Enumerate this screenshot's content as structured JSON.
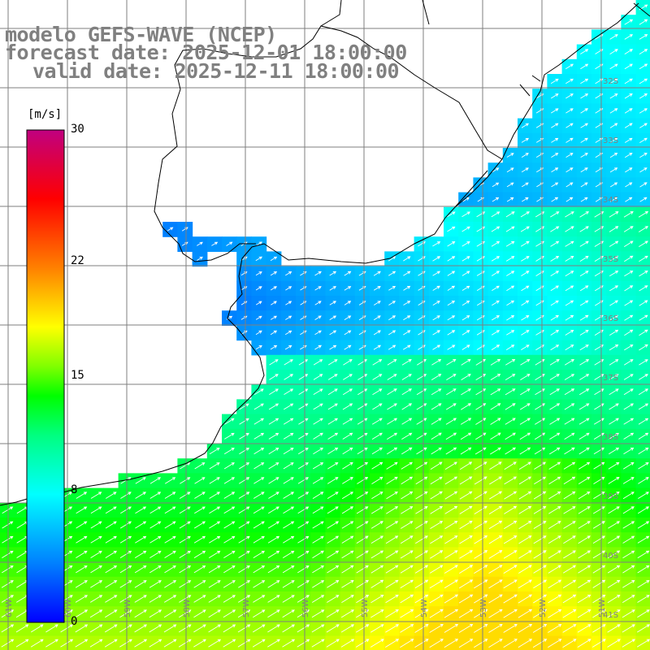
{
  "title": {
    "line1": "modelo GEFS-WAVE (NCEP)",
    "line2": "forecast date: 2025-12-01 18:00:00",
    "line3": "valid date: 2025-12-11 18:00:00"
  },
  "colorbar": {
    "units": "[m/s]",
    "min": 0,
    "max": 30,
    "ticks": [
      {
        "value": 30,
        "label": "30"
      },
      {
        "value": 22,
        "label": "22"
      },
      {
        "value": 15,
        "label": "15"
      },
      {
        "value": 8,
        "label": "8"
      },
      {
        "value": 0,
        "label": "0"
      }
    ],
    "colors": [
      "#0000ff",
      "#0080ff",
      "#00ffff",
      "#00ff80",
      "#00ff00",
      "#80ff00",
      "#ffff00",
      "#ff8000",
      "#ff0000",
      "#c00080"
    ]
  },
  "map": {
    "lon_labels": [
      "61W",
      "60W",
      "59W",
      "58W",
      "57W",
      "56W",
      "55W",
      "54W",
      "53W",
      "52W",
      "51W"
    ],
    "lat_labels": [
      "32S",
      "33S",
      "34S",
      "35S",
      "36S",
      "37S",
      "38S",
      "39S",
      "40S",
      "41S"
    ],
    "wind_direction": "toward NE",
    "colors": {
      "land": "#ffffff",
      "grid": "#7f7f7f",
      "coast": "#000000",
      "arrow": "#ffffff",
      "label": "#808080"
    }
  }
}
